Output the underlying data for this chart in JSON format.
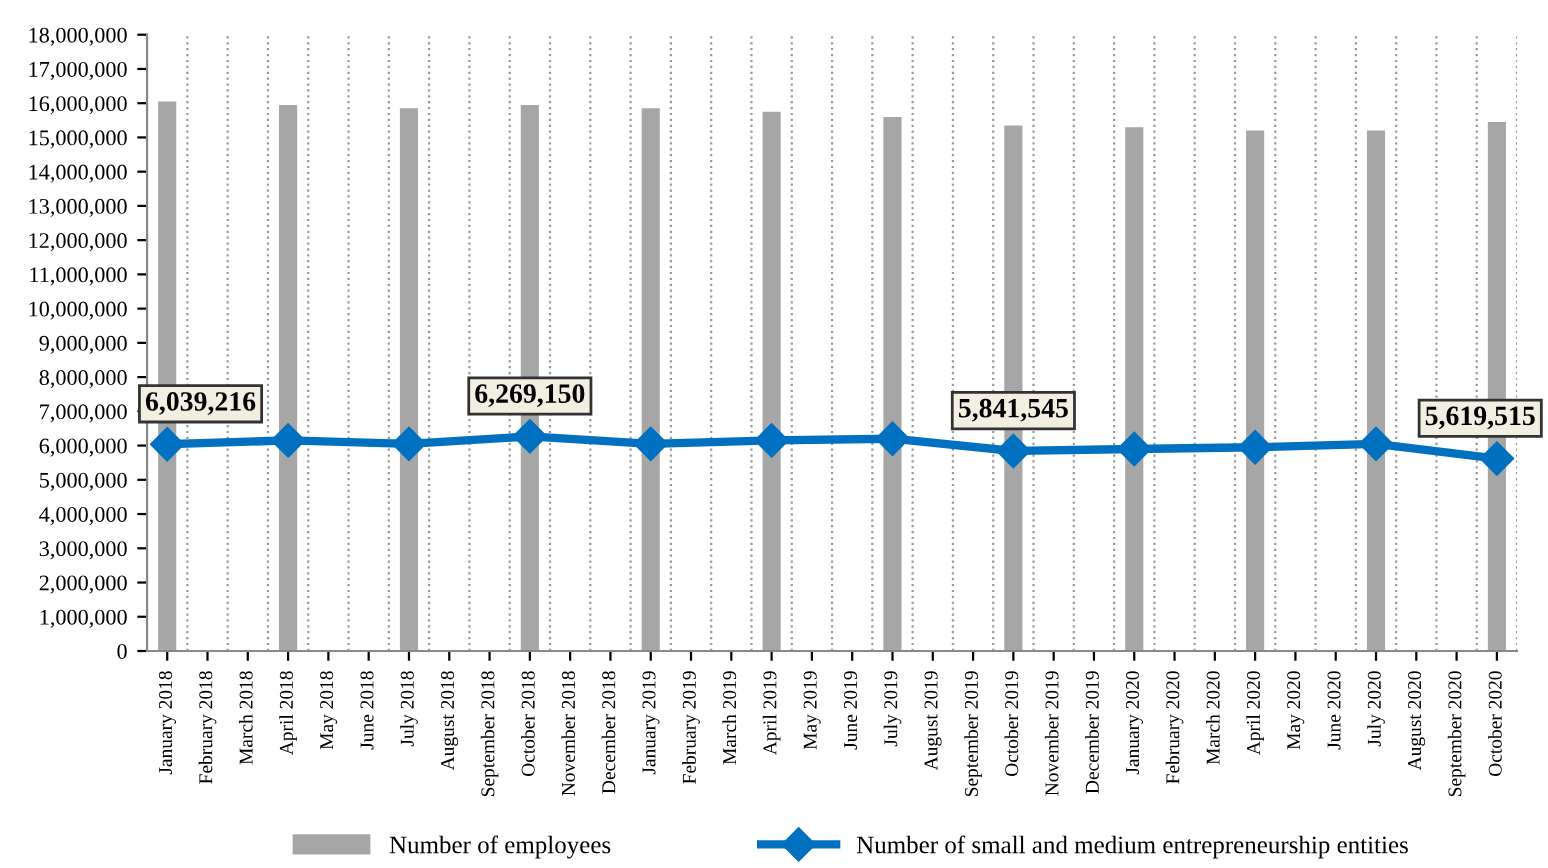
{
  "chart_data": {
    "type": "bar",
    "categories": [
      "January 2018",
      "February 2018",
      "March 2018",
      "April 2018",
      "May 2018",
      "June 2018",
      "July 2018",
      "August 2018",
      "September 2018",
      "October 2018",
      "November 2018",
      "December 2018",
      "January 2019",
      "February 2019",
      "March 2019",
      "April 2019",
      "May 2019",
      "June 2019",
      "July 2019",
      "August 2019",
      "September 2019",
      "October 2019",
      "November 2019",
      "December 2019",
      "January 2020",
      "February 2020",
      "March 2020",
      "April 2020",
      "May 2020",
      "June 2020",
      "July 2020",
      "August 2020",
      "September 2020",
      "October 2020"
    ],
    "series": [
      {
        "name": "Number of employees",
        "color": "#a6a6a6",
        "values": [
          16050000,
          null,
          null,
          15950000,
          null,
          null,
          15850000,
          null,
          null,
          15950000,
          null,
          null,
          15850000,
          null,
          null,
          15750000,
          null,
          null,
          15600000,
          null,
          null,
          15350000,
          null,
          null,
          15300000,
          null,
          null,
          15200000,
          null,
          null,
          15200000,
          null,
          null,
          15450000
        ]
      },
      {
        "name": "Number of small and medium entrepreneurship entities",
        "type": "line",
        "color": "#0070c0",
        "marker": "diamond",
        "values": [
          6039216,
          null,
          null,
          6150000,
          null,
          null,
          6050000,
          null,
          null,
          6269150,
          null,
          null,
          6050000,
          null,
          null,
          6150000,
          null,
          null,
          6200000,
          null,
          null,
          5841545,
          null,
          null,
          5900000,
          null,
          null,
          5950000,
          null,
          null,
          6050000,
          null,
          null,
          5619515
        ],
        "value_labels": [
          "6,039,216",
          null,
          null,
          null,
          null,
          null,
          null,
          null,
          null,
          "6,269,150",
          null,
          null,
          null,
          null,
          null,
          null,
          null,
          null,
          null,
          null,
          null,
          "5,841,545",
          null,
          null,
          null,
          null,
          null,
          null,
          null,
          null,
          null,
          null,
          null,
          "5,619,515"
        ]
      }
    ],
    "ylim": [
      0,
      18000000
    ],
    "yticks": [
      {
        "value": 0,
        "label": "0"
      },
      {
        "value": 1000000,
        "label": "1,000,000"
      },
      {
        "value": 2000000,
        "label": "2,000,000"
      },
      {
        "value": 3000000,
        "label": "3,000,000"
      },
      {
        "value": 4000000,
        "label": "4,000,000"
      },
      {
        "value": 5000000,
        "label": "5,000,000"
      },
      {
        "value": 6000000,
        "label": "6,000,000"
      },
      {
        "value": 7000000,
        "label": "7,000,000"
      },
      {
        "value": 8000000,
        "label": "8,000,000"
      },
      {
        "value": 9000000,
        "label": "9,000,000"
      },
      {
        "value": 10000000,
        "label": "10,000,000"
      },
      {
        "value": 11000000,
        "label": "11,000,000"
      },
      {
        "value": 12000000,
        "label": "12,000,000"
      },
      {
        "value": 13000000,
        "label": "13,000,000"
      },
      {
        "value": 14000000,
        "label": "14,000,000"
      },
      {
        "value": 15000000,
        "label": "15,000,000"
      },
      {
        "value": 16000000,
        "label": "16,000,000"
      },
      {
        "value": 17000000,
        "label": "17,000,000"
      },
      {
        "value": 18000000,
        "label": "18,000,000"
      }
    ],
    "grid": "x",
    "legend": "bottom"
  }
}
